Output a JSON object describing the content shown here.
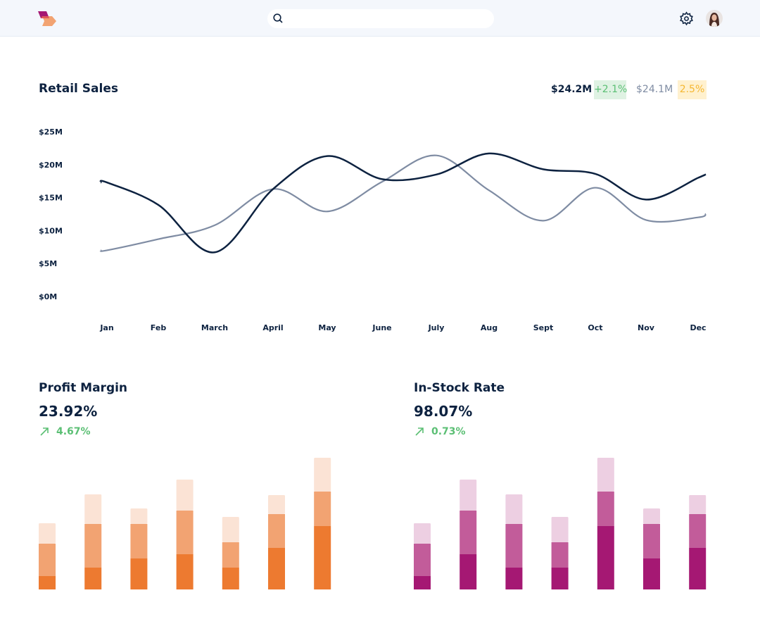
{
  "header": {
    "logo": "logo",
    "search": {
      "placeholder": "",
      "icon": "search-icon"
    },
    "settings_icon": "gear-icon",
    "avatar": "user-avatar"
  },
  "retail": {
    "title": "Retail Sales",
    "current": "$24.2M",
    "current_change": "+2.1%",
    "previous": "$24.1M",
    "previous_change": "2.5%",
    "colors": {
      "current": "#0d2240",
      "previous": "#7f8ca3",
      "positive_bg": "#dff2e3",
      "positive": "#5bbf74",
      "warn_bg": "#fff1cf",
      "warn": "#f5b731"
    }
  },
  "profit": {
    "title": "Profit Margin",
    "value": "23.92%",
    "change": "4.67%",
    "arrow": "arrow-up-right-icon"
  },
  "instock": {
    "title": "In-Stock Rate",
    "value": "98.07%",
    "change": "0.73%",
    "arrow": "arrow-up-right-icon"
  },
  "chart_data": [
    {
      "type": "line",
      "title": "Retail Sales",
      "categories": [
        "Jan",
        "Feb",
        "March",
        "April",
        "May",
        "June",
        "July",
        "Aug",
        "Sept",
        "Oct",
        "Nov",
        "Dec"
      ],
      "yticks": [
        "$0M",
        "$5M",
        "$10M",
        "$15M",
        "$20M",
        "$25M"
      ],
      "ylim": [
        0,
        25
      ],
      "grid": false,
      "series": [
        {
          "color": "#0d2240",
          "values": [
            17.3,
            13.9,
            6.7,
            16.3,
            21.3,
            17.8,
            18.5,
            21.7,
            19.3,
            18.6,
            14.7,
            18.0
          ]
        },
        {
          "color": "#7f8ca3",
          "values": [
            7.0,
            8.7,
            10.8,
            16.3,
            12.9,
            17.4,
            21.4,
            16.1,
            11.5,
            16.5,
            11.6,
            12.0
          ]
        }
      ]
    },
    {
      "type": "bar",
      "stacked": true,
      "title": "Profit Margin",
      "colors": [
        "#ed7a30",
        "#f2a372",
        "#fbe3d5"
      ],
      "series": [
        {
          "values": [
            19,
            31,
            44,
            50,
            31,
            59,
            90
          ]
        },
        {
          "values": [
            46,
            62,
            49,
            62,
            36,
            48,
            49
          ]
        },
        {
          "values": [
            29,
            42,
            22,
            44,
            36,
            27,
            48
          ]
        }
      ]
    },
    {
      "type": "bar",
      "stacked": true,
      "title": "In-Stock Rate",
      "colors": [
        "#a51873",
        "#c25c9a",
        "#edcfe2"
      ],
      "series": [
        {
          "values": [
            19,
            50,
            31,
            31,
            90,
            44,
            59
          ]
        },
        {
          "values": [
            46,
            62,
            62,
            36,
            49,
            49,
            48
          ]
        },
        {
          "values": [
            29,
            44,
            42,
            36,
            48,
            22,
            27
          ]
        }
      ]
    }
  ]
}
